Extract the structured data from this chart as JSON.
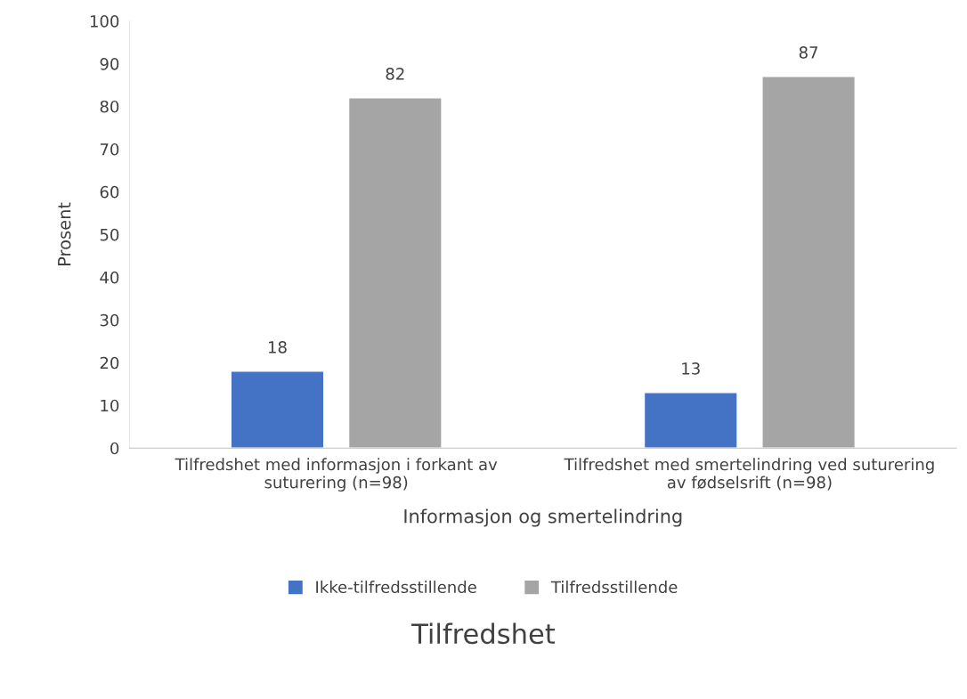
{
  "chart_data": {
    "type": "bar",
    "title": "Tilfredshet",
    "xlabel": "Informasjon og smertelindring",
    "ylabel": "Prosent",
    "categories": [
      "Tilfredshet med informasjon i forkant av\nsuturering (n=98)",
      "Tilfredshet med smertelindring ved suturering\nav fødselsrift (n=98)"
    ],
    "series": [
      {
        "name": "Ikke-tilfredsstillende",
        "color": "#4472c4",
        "values": [
          18,
          13
        ]
      },
      {
        "name": "Tilfredsstillende",
        "color": "#a5a5a5",
        "values": [
          82,
          87
        ]
      }
    ],
    "ylim": [
      0,
      100
    ],
    "yticks": [
      0,
      10,
      20,
      30,
      40,
      50,
      60,
      70,
      80,
      90,
      100
    ],
    "data_labels": true,
    "legend": "bottom",
    "grid": false
  }
}
